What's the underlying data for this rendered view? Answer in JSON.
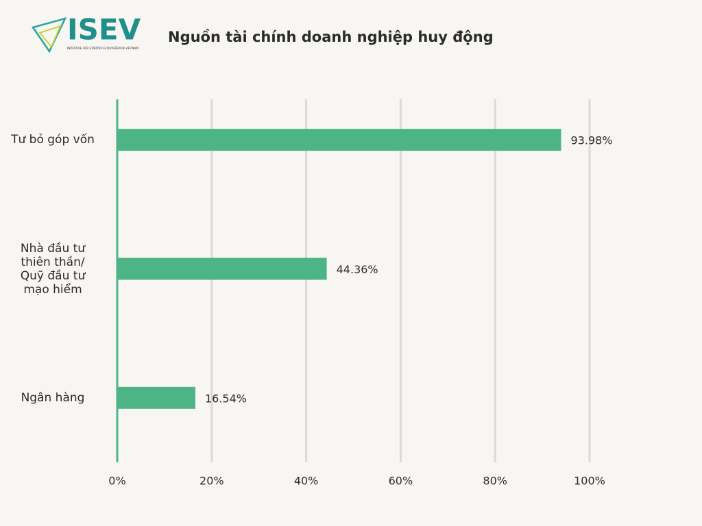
{
  "logo": {
    "text": "ISEV",
    "tagline": "INITIATIVE FOR STARTUP ECOSYSTEM IN VIETNAM"
  },
  "chart_data": {
    "type": "hbar",
    "title": "Nguồn tài chính doanh nghiệp huy động",
    "categories": [
      "Tư bỏ góp vốn",
      "Nhà đầu tư thiên thần/ Quỹ đầu tư mạo hiểm",
      "Ngân hàng"
    ],
    "values": [
      93.98,
      44.36,
      16.54
    ],
    "value_labels": [
      "93.98%",
      "44.36%",
      "16.54%"
    ],
    "color": "#4db485",
    "xlim": [
      0,
      100
    ],
    "xticks": [
      {
        "value": 0,
        "label": "0%"
      },
      {
        "value": 20,
        "label": "20%"
      },
      {
        "value": 40,
        "label": "40%"
      },
      {
        "value": 60,
        "label": "60%"
      },
      {
        "value": 80,
        "label": "80%"
      },
      {
        "value": 100,
        "label": "100%"
      }
    ],
    "grid": true
  }
}
